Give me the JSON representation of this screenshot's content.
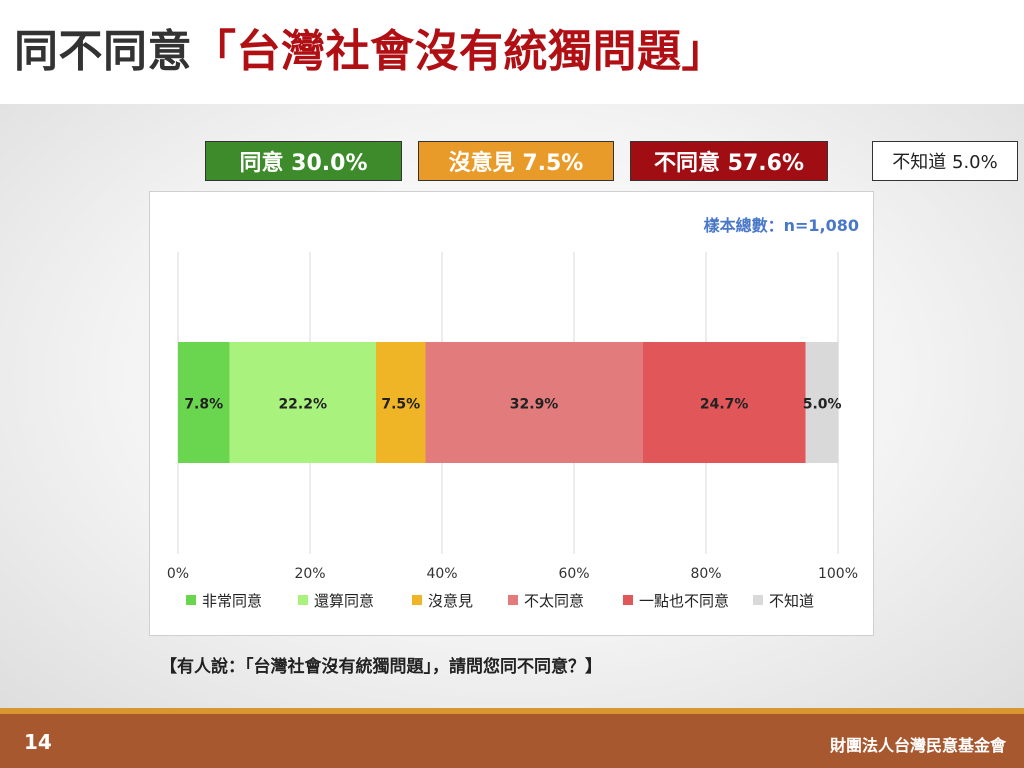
{
  "title": {
    "prefix": "同不同意",
    "highlight": "「台灣社會沒有統獨問題」"
  },
  "summary": {
    "agree": "同意 30.0%",
    "neutral": "沒意見 7.5%",
    "disagree": "不同意 57.6%",
    "unknown": "不知道 5.0%"
  },
  "sample_note": "樣本總數：n=1,080",
  "question": "【有人說：「台灣社會沒有統獨問題」，請問您同不同意？】",
  "footer": {
    "page_number": "14",
    "organization": "財團法人台灣民意基金會"
  },
  "colors": {
    "strongly_agree": "#6ad64f",
    "somewhat_agree": "#a9f27e",
    "no_opinion": "#f0b526",
    "somewhat_disagree": "#e27c7c",
    "strongly_disagree": "#e15659",
    "dont_know": "#d9d9d9"
  },
  "chart_data": {
    "type": "bar",
    "orientation": "horizontal",
    "stacked": true,
    "xlim": [
      0,
      100
    ],
    "x_ticks": [
      "0%",
      "20%",
      "40%",
      "60%",
      "80%",
      "100%"
    ],
    "grid": true,
    "legend_position": "bottom",
    "series": [
      {
        "name": "非常同意",
        "value": 7.8,
        "label": "7.8%",
        "color": "#6ad64f"
      },
      {
        "name": "還算同意",
        "value": 22.2,
        "label": "22.2%",
        "color": "#a9f27e"
      },
      {
        "name": "沒意見",
        "value": 7.5,
        "label": "7.5%",
        "color": "#f0b526"
      },
      {
        "name": "不太同意",
        "value": 32.9,
        "label": "32.9%",
        "color": "#e27c7c"
      },
      {
        "name": "一點也不同意",
        "value": 24.7,
        "label": "24.7%",
        "color": "#e15659"
      },
      {
        "name": "不知道",
        "value": 5.0,
        "label": "5.0%",
        "color": "#d9d9d9"
      }
    ]
  }
}
